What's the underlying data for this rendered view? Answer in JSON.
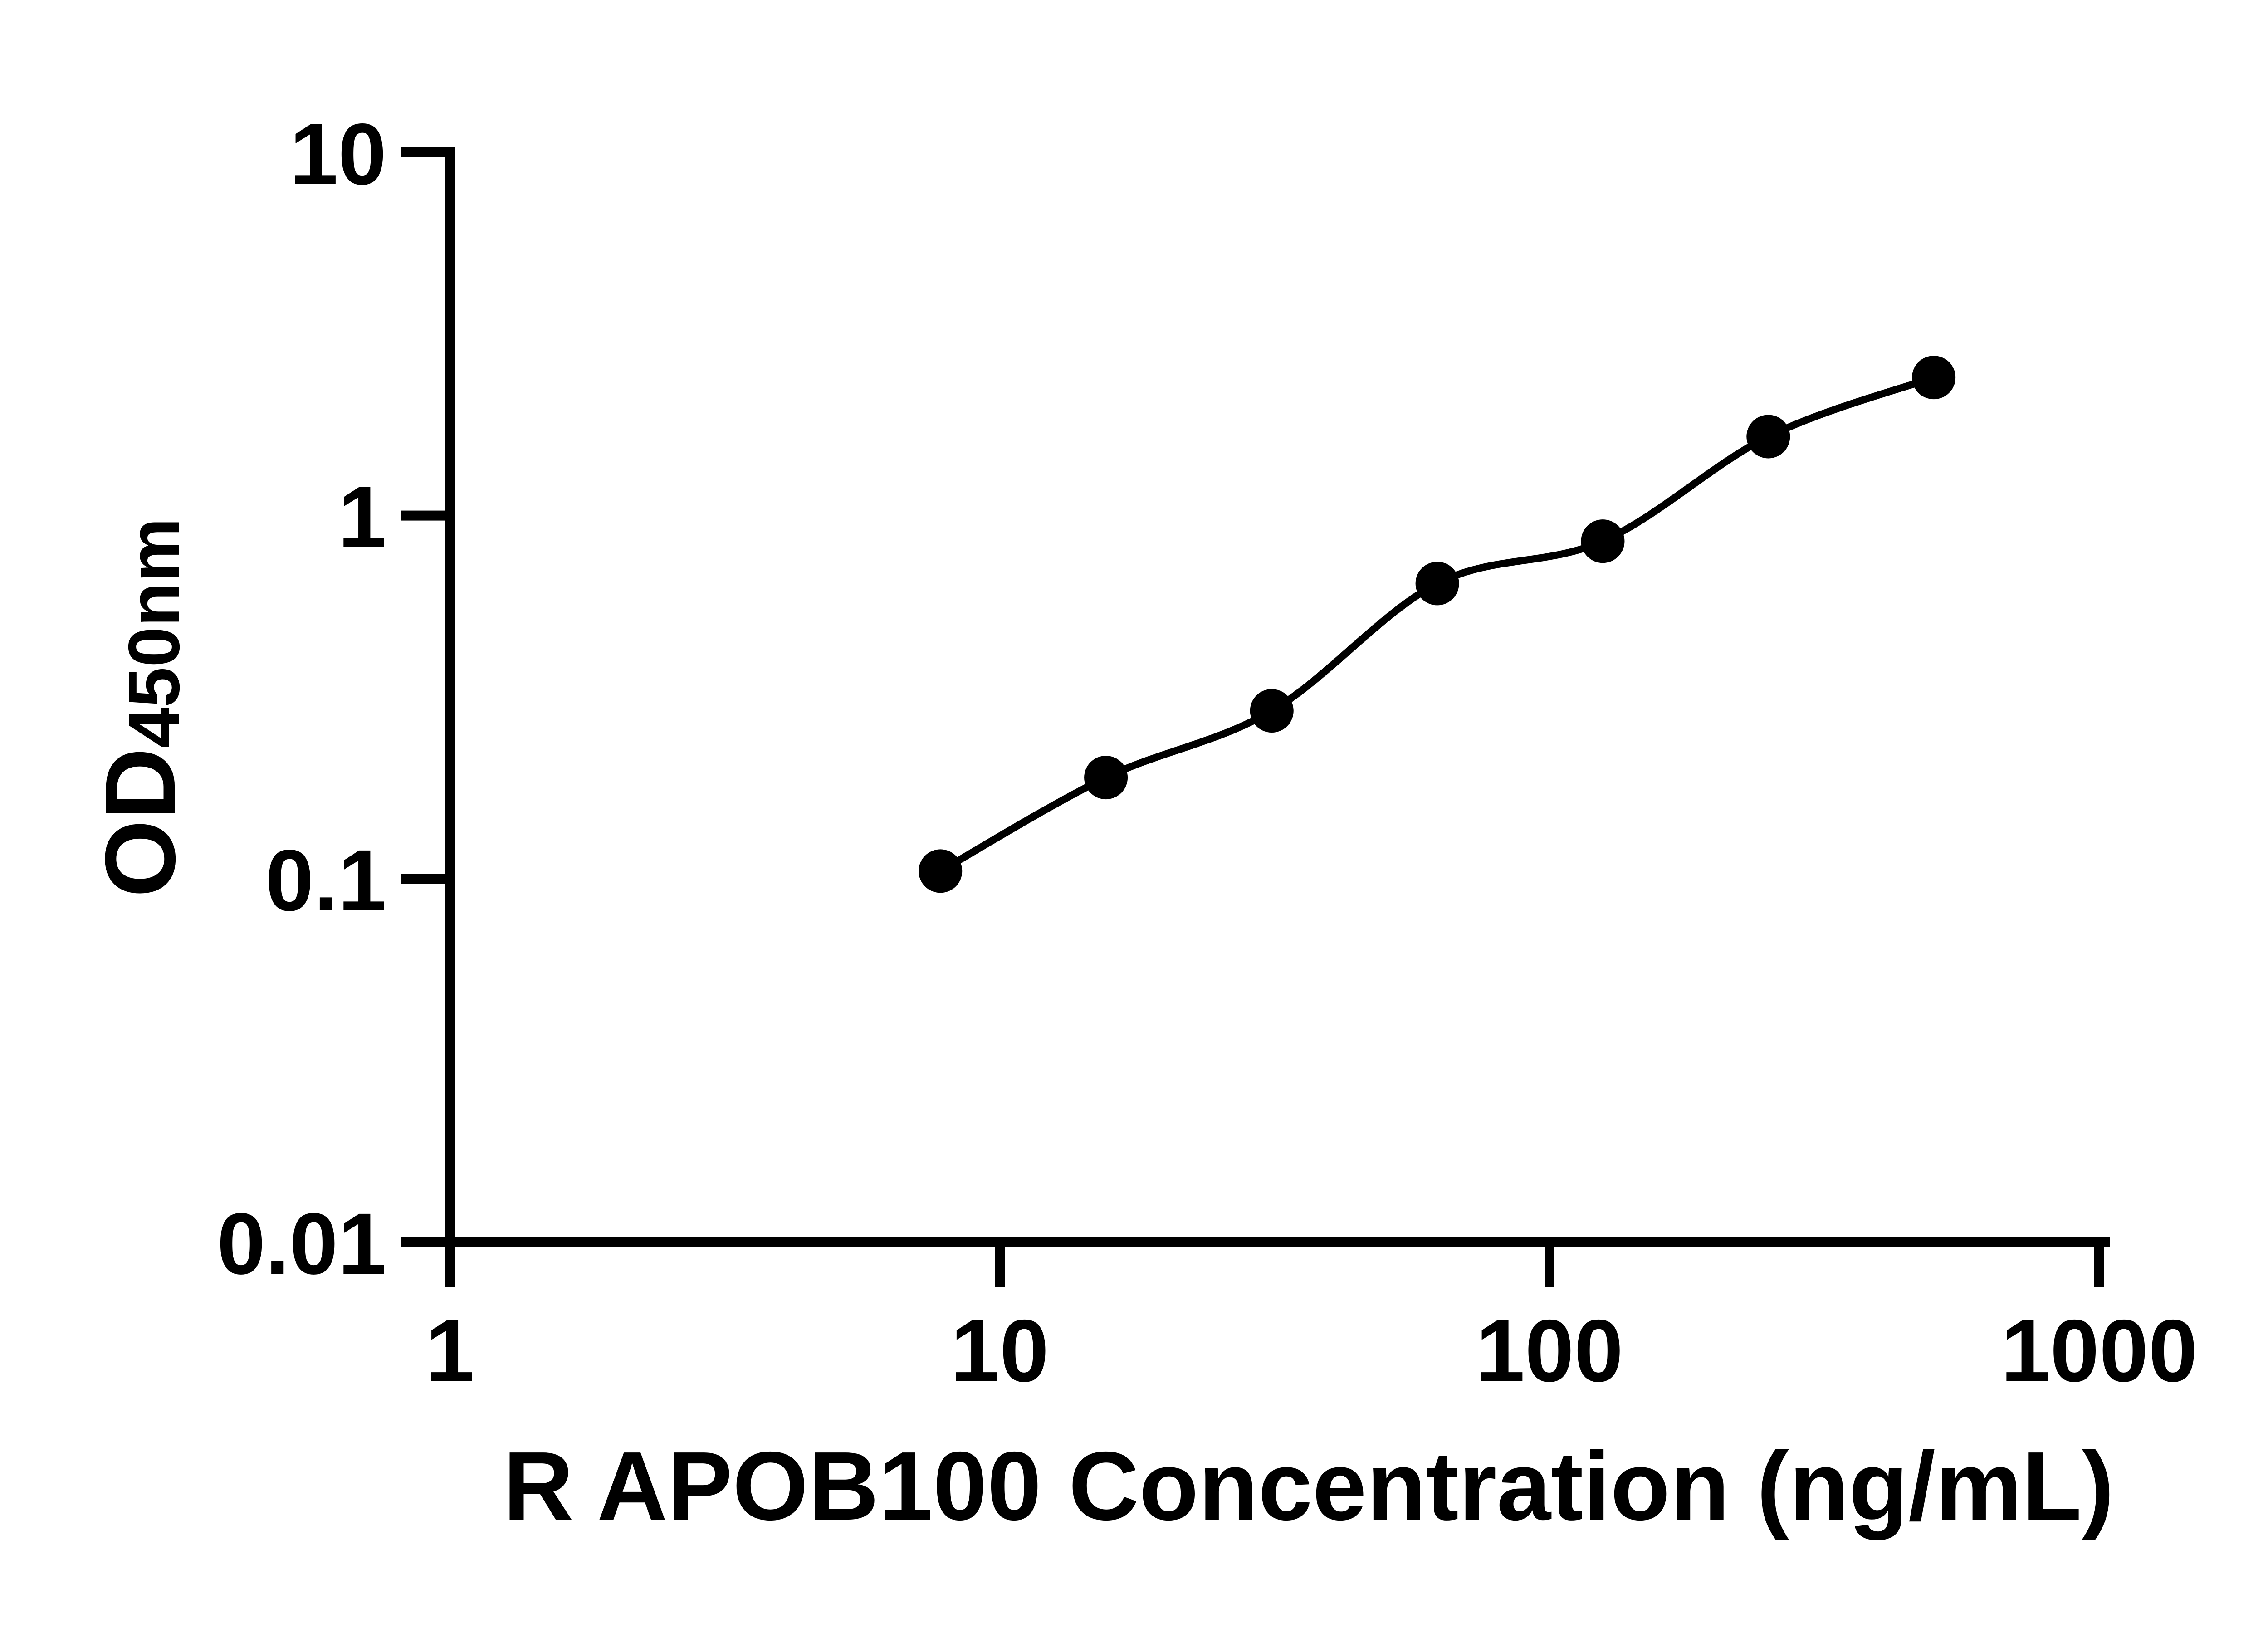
{
  "figure": {
    "background": "#ffffff",
    "foreground": "#000000"
  },
  "chart_data": {
    "type": "scatter",
    "title": "",
    "xlabel": "R APOB100 Concentration (ng/mL)",
    "ylabel": "OD450nm",
    "ylabel_main": "OD",
    "ylabel_sub": "450nm",
    "x_scale": "log",
    "y_scale": "log",
    "xlim": [
      1,
      1000
    ],
    "ylim": [
      0.01,
      10
    ],
    "x_ticks": [
      1,
      10,
      100,
      1000
    ],
    "x_tick_labels": [
      "1",
      "10",
      "100",
      "1000"
    ],
    "y_ticks": [
      10,
      1,
      0.1,
      0.01
    ],
    "y_tick_labels": [
      "10",
      "1",
      "0.1",
      "0.01"
    ],
    "grid": false,
    "legend": false,
    "marker": "filled-circle",
    "marker_color": "#000000",
    "line_style": "smooth-fit-curve",
    "line_color": "#000000",
    "series": [
      {
        "x": [
          7.8,
          15.6,
          31.25,
          62.5,
          125,
          250,
          500
        ],
        "y": [
          0.105,
          0.19,
          0.29,
          0.65,
          0.85,
          1.65,
          2.4
        ]
      }
    ]
  }
}
